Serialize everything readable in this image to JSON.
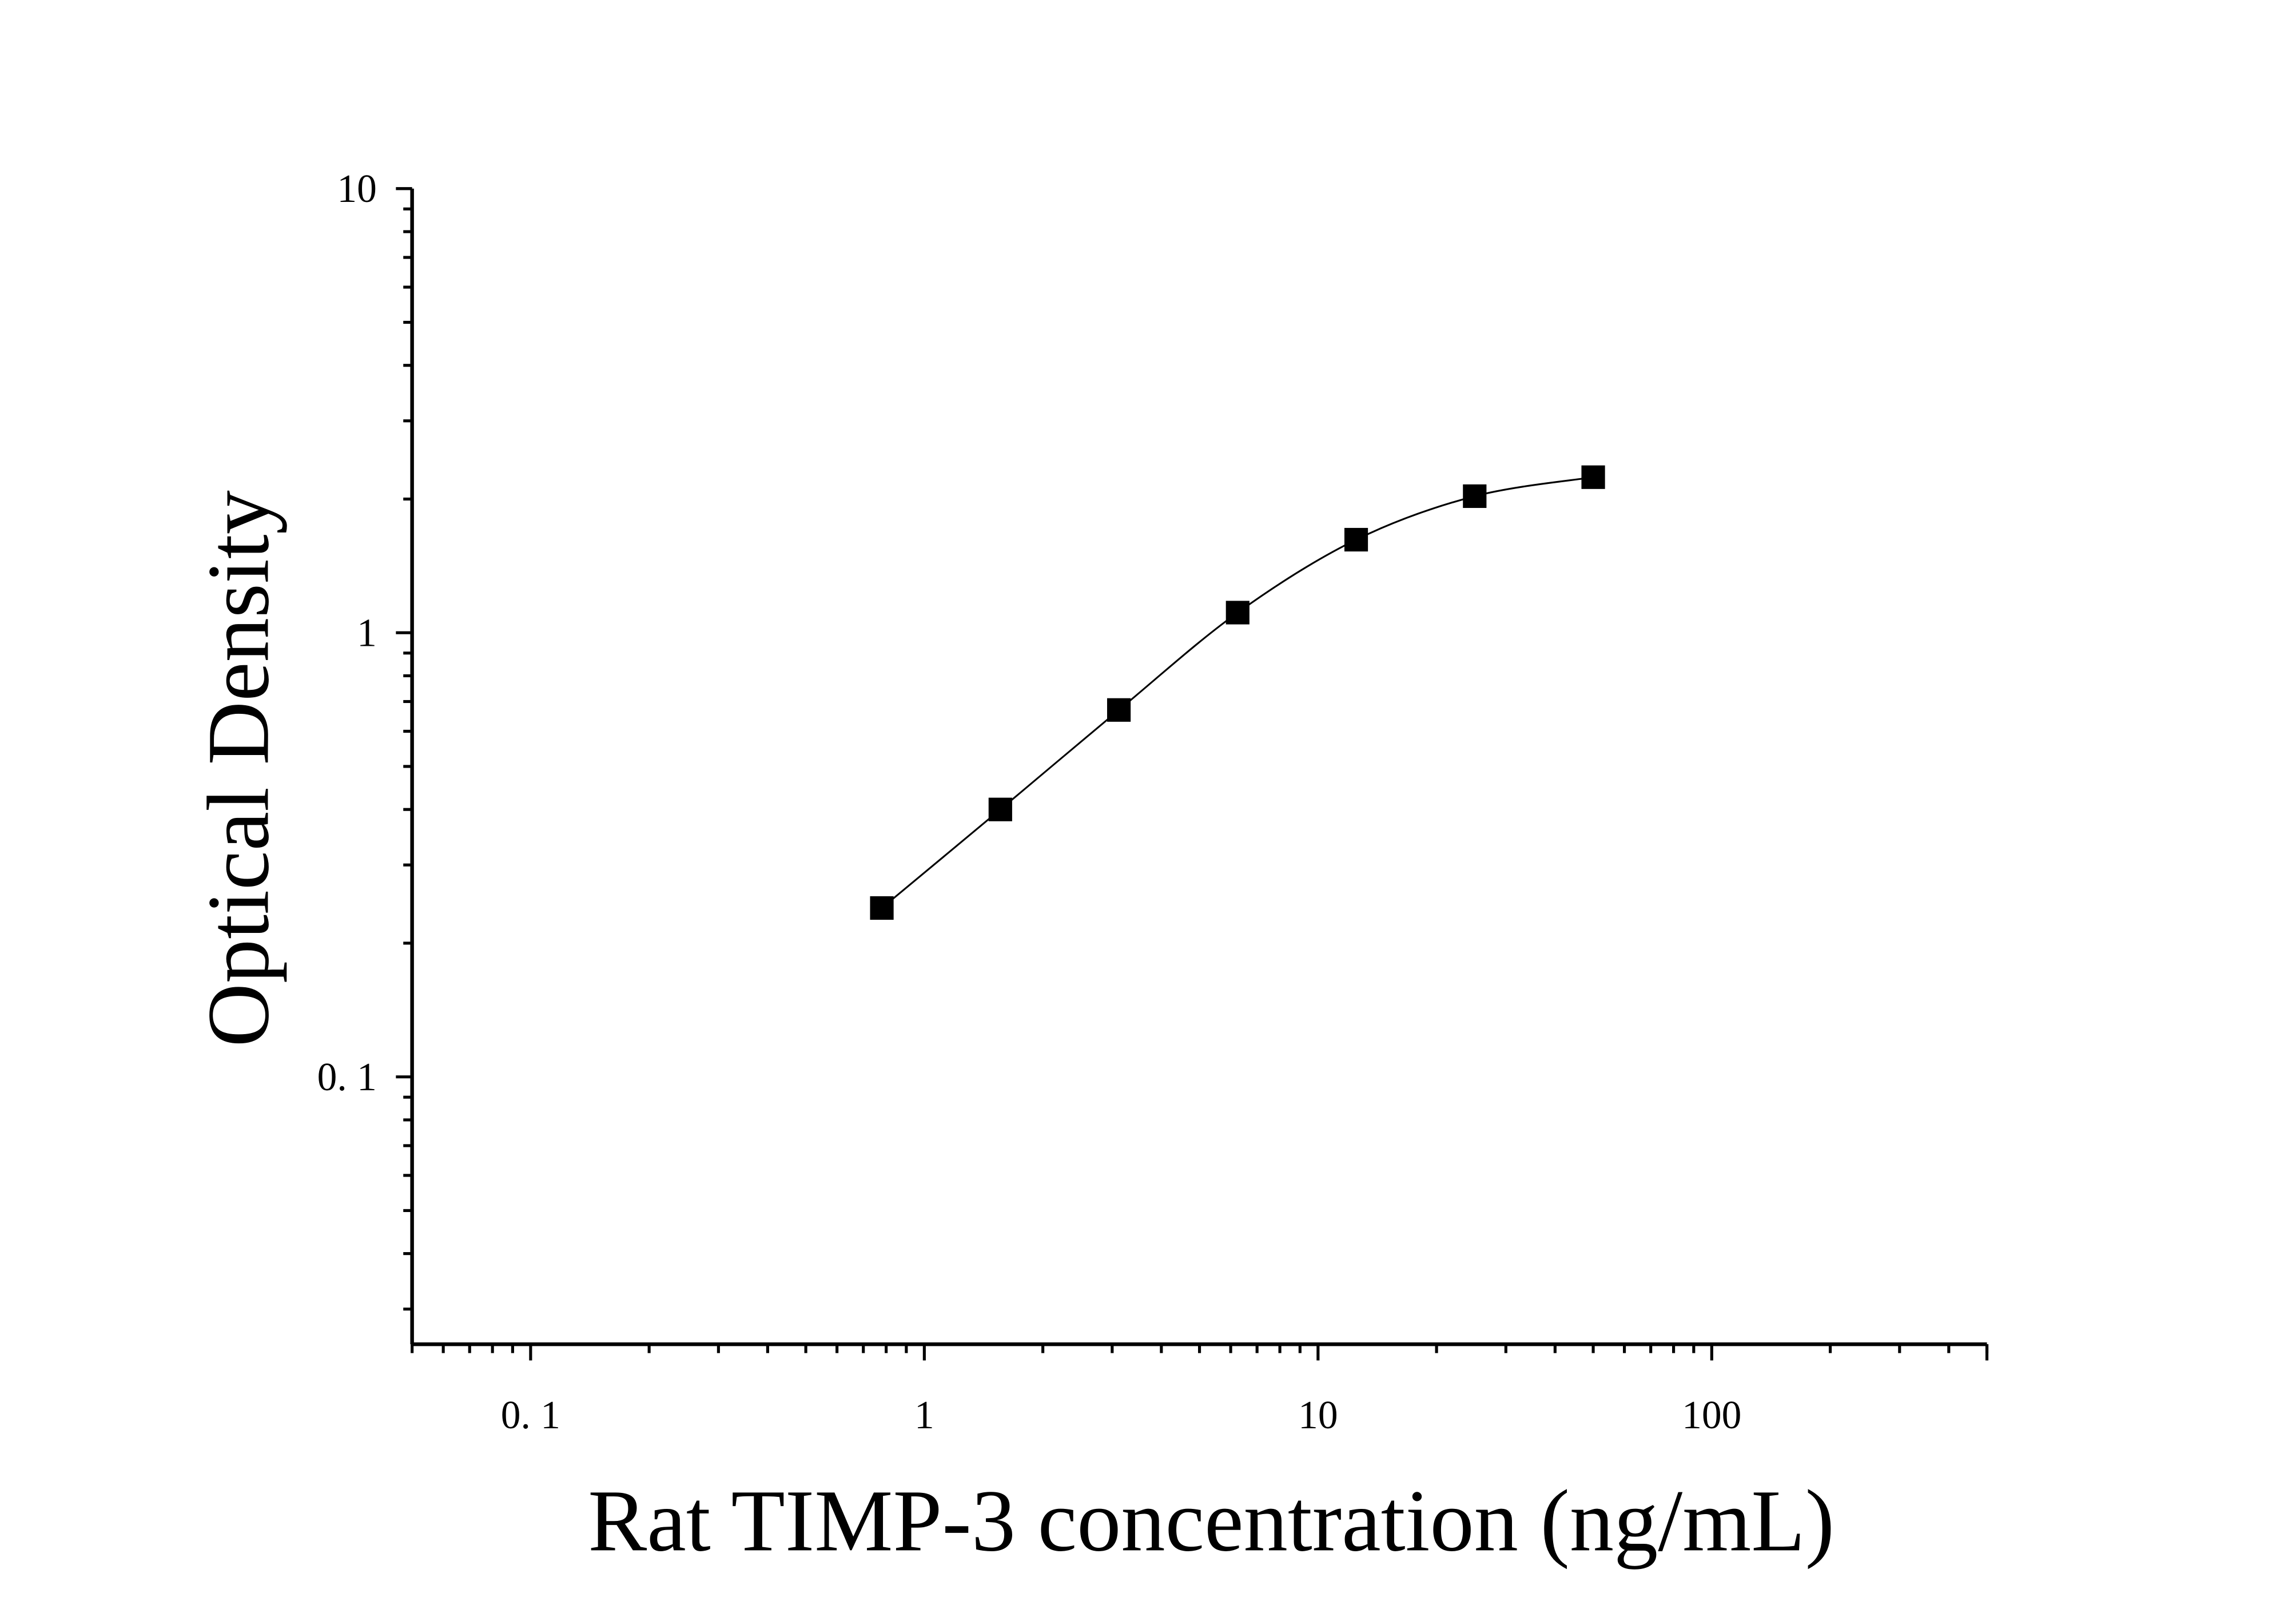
{
  "chart_data": {
    "type": "scatter",
    "title": "",
    "xlabel": "Rat TIMP-3 concentration (ng/mL)",
    "ylabel": "Optical Density",
    "xscale": "log",
    "yscale": "log",
    "xlim": [
      0.05,
      500
    ],
    "ylim": [
      0.025,
      10
    ],
    "x_ticks": [
      0.1,
      1,
      10,
      100
    ],
    "x_tick_labels": [
      "0. 1",
      "1",
      "10",
      "100"
    ],
    "y_ticks": [
      0.1,
      1,
      10
    ],
    "y_tick_labels": [
      "0. 1",
      "1",
      "10"
    ],
    "grid": false,
    "marker": "square",
    "color": "#000000",
    "fitted_curve": true,
    "series": [
      {
        "x": [
          0.78,
          1.56,
          3.12,
          6.25,
          12.5,
          25,
          50
        ],
        "y": [
          0.24,
          0.4,
          0.67,
          1.11,
          1.62,
          2.03,
          2.24
        ]
      }
    ]
  }
}
